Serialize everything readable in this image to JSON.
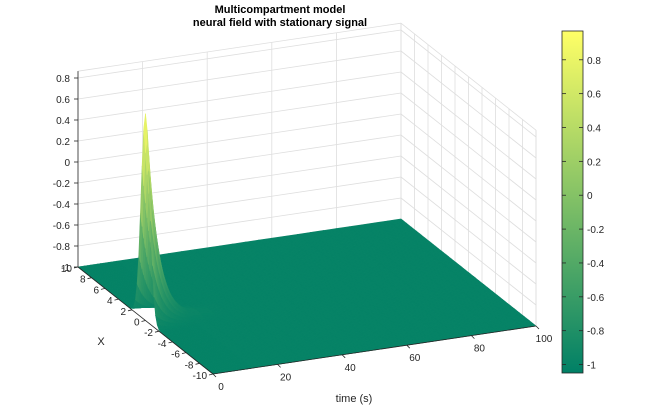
{
  "chart_data": {
    "type": "surface",
    "title": [
      "Multicompartment model",
      "neural field with stationary signal"
    ],
    "xlabel": "time (s)",
    "ylabel": "X",
    "zlabel": "",
    "x_range": [
      0,
      100
    ],
    "y_range": [
      -10,
      10
    ],
    "z_range": [
      -1,
      0.8
    ],
    "x_ticks": [
      "0",
      "20",
      "40",
      "60",
      "80",
      "100"
    ],
    "y_ticks": [
      "-10",
      "-8",
      "-6",
      "-4",
      "-2",
      "0",
      "2",
      "4",
      "6",
      "8",
      "10"
    ],
    "z_ticks": [
      "-1",
      "-0.8",
      "-0.6",
      "-0.4",
      "-0.2",
      "0",
      "0.2",
      "0.4",
      "0.6",
      "0.8"
    ],
    "surface": {
      "baseline": -1,
      "peak": 0.97,
      "peak_time": 0,
      "peak_x": 0,
      "decay_time_constant": 3.5,
      "spatial_width": 0.9
    },
    "colorbar": {
      "colormap": "summer",
      "range": [
        -1.05,
        0.97
      ],
      "ticks": [
        "0.8",
        "0.6",
        "0.4",
        "0.2",
        "0",
        "-0.2",
        "-0.4",
        "-0.6",
        "-0.8",
        "-1"
      ],
      "color_low": "#008066",
      "color_high": "#FFFF66"
    },
    "grid": true,
    "box": true
  }
}
